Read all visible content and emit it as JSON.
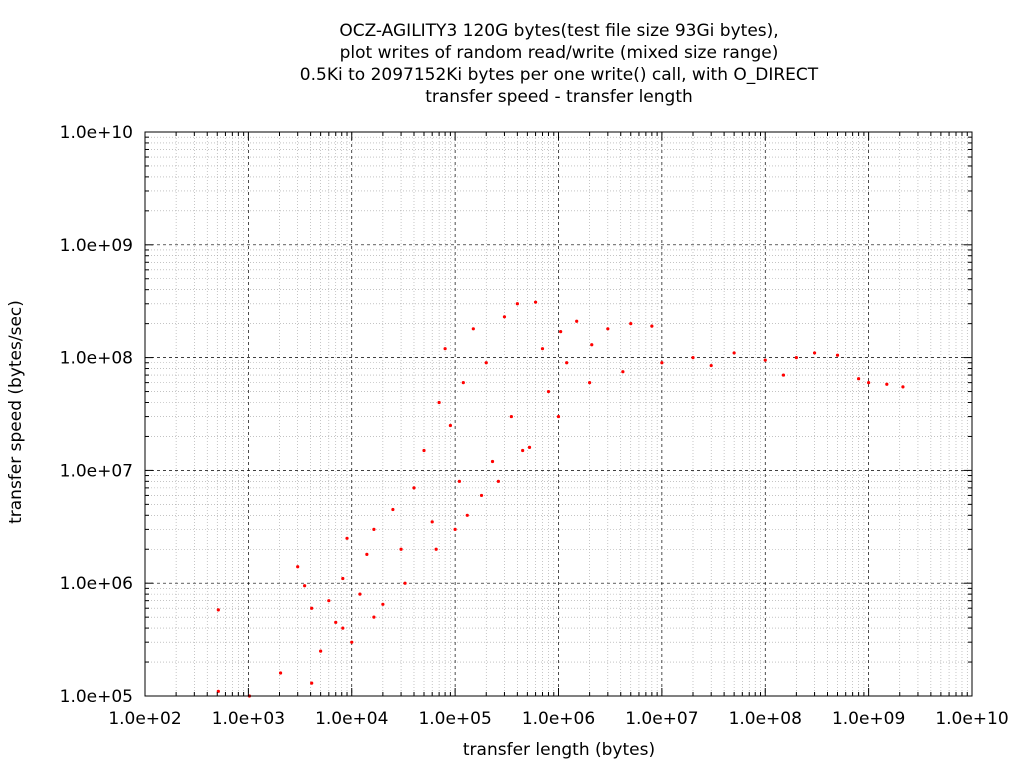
{
  "chart_data": {
    "type": "scatter",
    "title_lines": [
      "OCZ-AGILITY3 120G bytes(test file size 93Gi bytes),",
      "plot writes of random read/write (mixed size range)",
      "0.5Ki to 2097152Ki bytes per one write() call, with O_DIRECT",
      "transfer speed - transfer length"
    ],
    "xlabel": "transfer length (bytes)",
    "ylabel": "transfer speed (bytes/sec)",
    "x_scale": "log",
    "y_scale": "log",
    "xlim": [
      100,
      10000000000
    ],
    "ylim": [
      100000,
      10000000000
    ],
    "x_ticks": [
      "1.0e+02",
      "1.0e+03",
      "1.0e+04",
      "1.0e+05",
      "1.0e+06",
      "1.0e+07",
      "1.0e+08",
      "1.0e+09",
      "1.0e+10"
    ],
    "y_ticks": [
      "1.0e+05",
      "1.0e+06",
      "1.0e+07",
      "1.0e+08",
      "1.0e+09",
      "1.0e+10"
    ],
    "grid": true,
    "point_color": "#ff0000",
    "series": [
      {
        "points": [
          [
            512,
            580000
          ],
          [
            512,
            110000
          ],
          [
            1024,
            100000
          ],
          [
            2048,
            160000
          ],
          [
            3000,
            1400000
          ],
          [
            3500,
            950000
          ],
          [
            4096,
            600000
          ],
          [
            4096,
            130000
          ],
          [
            5000,
            250000
          ],
          [
            6000,
            700000
          ],
          [
            7000,
            450000
          ],
          [
            8192,
            1100000
          ],
          [
            8192,
            400000
          ],
          [
            9000,
            2500000
          ],
          [
            10000,
            300000
          ],
          [
            12000,
            800000
          ],
          [
            14000,
            1800000
          ],
          [
            16384,
            500000
          ],
          [
            16384,
            3000000
          ],
          [
            20000,
            650000
          ],
          [
            25000,
            4500000
          ],
          [
            30000,
            2000000
          ],
          [
            32768,
            1000000
          ],
          [
            40000,
            7000000
          ],
          [
            50000,
            15000000
          ],
          [
            60000,
            3500000
          ],
          [
            65536,
            2000000
          ],
          [
            70000,
            40000000
          ],
          [
            80000,
            120000000
          ],
          [
            90000,
            25000000
          ],
          [
            100000,
            3000000
          ],
          [
            110000,
            8000000
          ],
          [
            120000,
            60000000
          ],
          [
            131072,
            4000000
          ],
          [
            150000,
            180000000
          ],
          [
            180000,
            6000000
          ],
          [
            200000,
            90000000
          ],
          [
            230000,
            12000000
          ],
          [
            262144,
            8000000
          ],
          [
            300000,
            230000000
          ],
          [
            350000,
            30000000
          ],
          [
            400000,
            300000000
          ],
          [
            450000,
            15000000
          ],
          [
            524288,
            16000000
          ],
          [
            600000,
            310000000
          ],
          [
            700000,
            120000000
          ],
          [
            800000,
            50000000
          ],
          [
            1000000,
            30000000
          ],
          [
            1048576,
            170000000
          ],
          [
            1200000,
            90000000
          ],
          [
            1500000,
            210000000
          ],
          [
            2000000,
            60000000
          ],
          [
            2097152,
            130000000
          ],
          [
            3000000,
            180000000
          ],
          [
            4194304,
            75000000
          ],
          [
            5000000,
            200000000
          ],
          [
            8000000,
            190000000
          ],
          [
            10000000,
            90000000
          ],
          [
            20000000,
            100000000
          ],
          [
            30000000,
            85000000
          ],
          [
            50000000,
            110000000
          ],
          [
            100000000,
            95000000
          ],
          [
            150000000,
            70000000
          ],
          [
            200000000,
            100000000
          ],
          [
            300000000,
            110000000
          ],
          [
            500000000,
            105000000
          ],
          [
            800000000,
            65000000
          ],
          [
            1000000000,
            60000000
          ],
          [
            1500000000,
            58000000
          ],
          [
            2147483648,
            55000000
          ]
        ]
      }
    ]
  }
}
